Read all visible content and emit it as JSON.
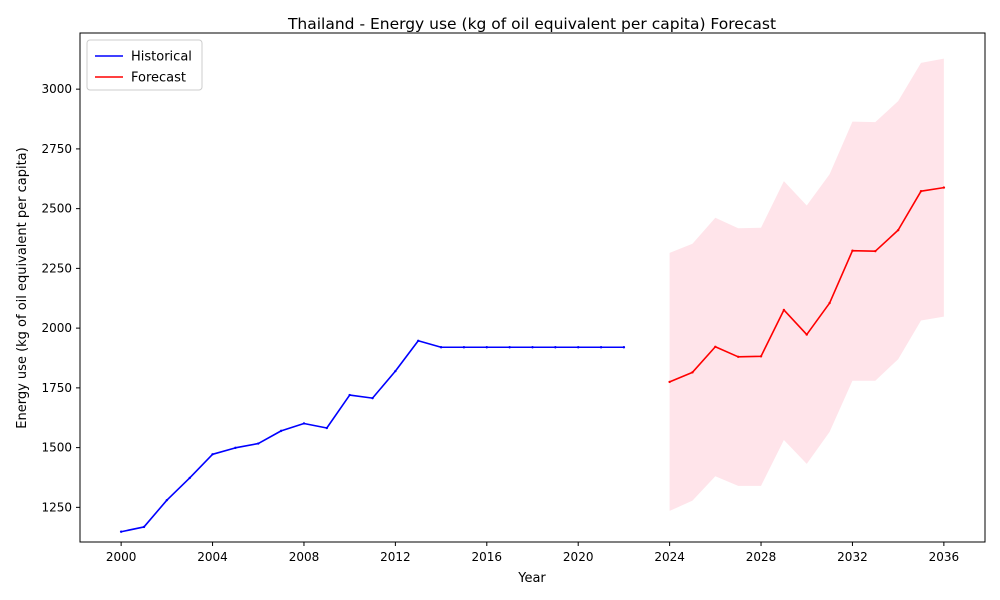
{
  "chart_data": {
    "type": "line",
    "title": "Thailand - Energy use (kg of oil equivalent per capita) Forecast",
    "xlabel": "Year",
    "ylabel": "Energy use (kg of oil equivalent per capita)",
    "xlim": [
      1998.2,
      2037.8
    ],
    "ylim": [
      1105,
      3235
    ],
    "xticks": [
      2000,
      2004,
      2008,
      2012,
      2016,
      2020,
      2024,
      2028,
      2032,
      2036
    ],
    "yticks": [
      1250,
      1500,
      1750,
      2000,
      2250,
      2500,
      2750,
      3000
    ],
    "grid": false,
    "legend_position": "top-left",
    "series": [
      {
        "name": "Historical",
        "color": "#0000ff",
        "x": [
          2000,
          2001,
          2002,
          2003,
          2004,
          2005,
          2006,
          2007,
          2008,
          2009,
          2010,
          2011,
          2012,
          2013,
          2014,
          2015,
          2016,
          2017,
          2018,
          2019,
          2020,
          2021,
          2022
        ],
        "values": [
          1148,
          1168,
          1280,
          1373,
          1472,
          1499,
          1517,
          1570,
          1601,
          1582,
          1720,
          1707,
          1820,
          1947,
          1920,
          1920,
          1920,
          1920,
          1920,
          1920,
          1920,
          1920,
          1920
        ]
      },
      {
        "name": "Forecast",
        "color": "#ff0000",
        "x": [
          2024,
          2025,
          2026,
          2027,
          2028,
          2029,
          2030,
          2031,
          2032,
          2033,
          2034,
          2035,
          2036
        ],
        "values": [
          1775,
          1815,
          1922,
          1880,
          1882,
          2076,
          1973,
          2105,
          2324,
          2322,
          2410,
          2573,
          2588
        ],
        "lower": [
          1235,
          1278,
          1380,
          1340,
          1340,
          1532,
          1432,
          1566,
          1780,
          1780,
          1870,
          2032,
          2048
        ],
        "upper": [
          2315,
          2353,
          2462,
          2418,
          2420,
          2615,
          2513,
          2644,
          2864,
          2862,
          2950,
          3110,
          3128
        ],
        "band_color": "#ffe4ea"
      }
    ]
  }
}
